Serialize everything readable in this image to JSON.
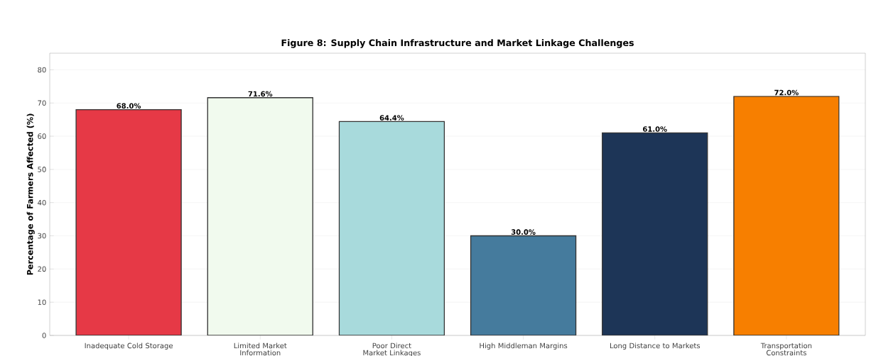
{
  "chart_data": {
    "type": "bar",
    "title": "Figure 8: Supply Chain Infrastructure and Market Linkage Challenges",
    "ylabel": "Percentage of Farmers Affected (%)",
    "categories": [
      "Inadequate Cold Storage",
      "Limited Market Information",
      "Poor Direct Market Linkages",
      "High Middleman Margins",
      "Long Distance to Markets",
      "Transportation Constraints"
    ],
    "values": [
      68.0,
      71.6,
      64.4,
      30.0,
      61.0,
      72.0
    ],
    "colors": [
      "#e63946",
      "#f1faee",
      "#a8dadc",
      "#457b9d",
      "#1d3557",
      "#f77f00"
    ],
    "value_labels": [
      "68.0%",
      "71.6%",
      "64.4%",
      "30.0%",
      "61.0%",
      "72.0%"
    ],
    "ylim": [
      0,
      85
    ],
    "yticks": [
      0,
      10,
      20,
      30,
      40,
      50,
      60,
      70,
      80
    ],
    "grid": "y"
  }
}
